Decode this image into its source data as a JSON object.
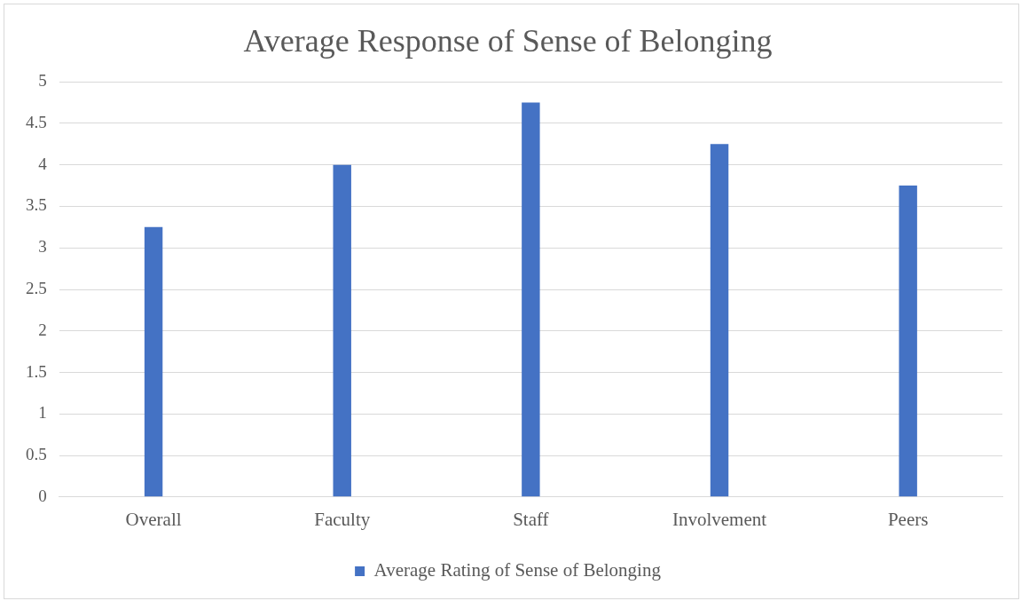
{
  "chart_data": {
    "type": "bar",
    "title": "Average Response of Sense of Belonging",
    "categories": [
      "Overall",
      "Faculty",
      "Staff",
      "Involvement",
      "Peers"
    ],
    "series": [
      {
        "name": "Average Rating of Sense of Belonging",
        "color": "#4472c4",
        "values": [
          3.25,
          4,
          4.75,
          4.25,
          3.75
        ]
      }
    ],
    "ylim": [
      0,
      5
    ],
    "yticks": [
      0,
      0.5,
      1,
      1.5,
      2,
      2.5,
      3,
      3.5,
      4,
      4.5,
      5
    ],
    "grid": "y",
    "legend": "bottom"
  }
}
